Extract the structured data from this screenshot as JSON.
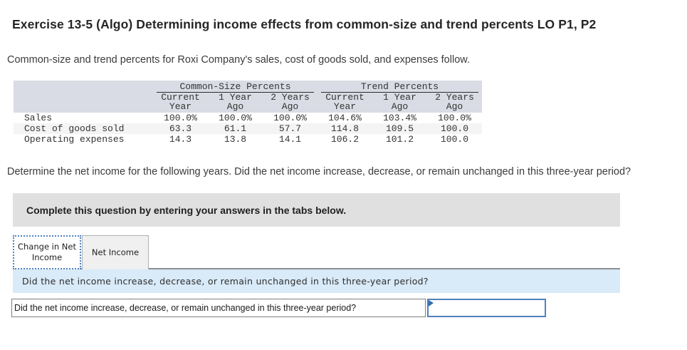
{
  "colors": {
    "table_header_bg": "#d9dce4",
    "table_stripe_bg": "#f4f4f5",
    "instruction_bg": "#e0e0e0",
    "prompt_bar_bg": "#d9eaf8",
    "input_border": "#4f81bd",
    "active_tab_border": "#4d83c2",
    "marker_blue": "#2e6db4"
  },
  "header": {
    "title": "Exercise 13-5 (Algo) Determining income effects from common-size and trend percents LO P1, P2"
  },
  "intro": "Common-size and trend percents for Roxi Company's sales, cost of goods sold, and expenses follow.",
  "percent_table": {
    "group_headers": [
      "Common-Size Percents",
      "Trend Percents"
    ],
    "sub_headers": [
      {
        "line1": "Current",
        "line2": "Year"
      },
      {
        "line1": "1 Year",
        "line2": "Ago"
      },
      {
        "line1": "2 Years",
        "line2": "Ago"
      },
      {
        "line1": "Current",
        "line2": "Year"
      },
      {
        "line1": "1 Year",
        "line2": "Ago"
      },
      {
        "line1": "2 Years",
        "line2": "Ago"
      }
    ],
    "rows": [
      {
        "label": "Sales",
        "values": [
          "100.0%",
          "100.0%",
          "100.0%",
          "104.6%",
          "103.4%",
          "100.0%"
        ]
      },
      {
        "label": "Cost of goods sold",
        "values": [
          "63.3",
          "61.1",
          "57.7",
          "114.8",
          "109.5",
          "100.0"
        ]
      },
      {
        "label": "Operating expenses",
        "values": [
          "14.3",
          "13.8",
          "14.1",
          "106.2",
          "101.2",
          "100.0"
        ]
      }
    ]
  },
  "question": "Determine the net income for the following years. Did the net income increase, decrease, or remain unchanged in this three-year period?",
  "instruction_box": {
    "text": "Complete this question by entering your answers in the tabs below."
  },
  "tabs": [
    {
      "label": "Change in Net Income",
      "active": true
    },
    {
      "label": "Net Income",
      "active": false
    }
  ],
  "prompt_bar": {
    "text": "Did the net income increase, decrease, or remain unchanged in this three-year period?"
  },
  "answer_row": {
    "question": "Did the net income increase, decrease, or remain unchanged in this three-year period?",
    "input_value": ""
  }
}
